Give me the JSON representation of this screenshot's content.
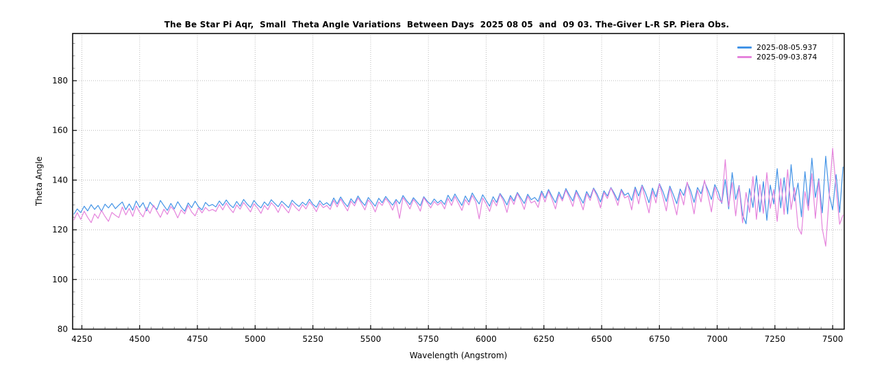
{
  "chart_data": {
    "type": "line",
    "title": "The Be Star Pi Aqr,  Small  Theta Angle Variations  Between Days  2025 08 05  and  09 03. The-Giver L-R SP. Piera Obs.",
    "xlabel": "Wavelength (Angstrom)",
    "ylabel": "Theta Angle",
    "xlim": [
      4210,
      7550
    ],
    "ylim": [
      80,
      199
    ],
    "x_major_ticks": [
      4250,
      4500,
      4750,
      5000,
      5250,
      5500,
      5750,
      6000,
      6250,
      6500,
      6750,
      7000,
      7250,
      7500
    ],
    "x_minor_step": 50,
    "y_major_ticks": [
      80,
      100,
      120,
      140,
      160,
      180
    ],
    "y_minor_step": 5,
    "grid": "dotted lines at major ticks",
    "grid_color": "#b8b8b8",
    "axis_color": "#000000",
    "legend_position": "top-right",
    "x_start": 4215,
    "x_step": 15,
    "series": [
      {
        "name": "2025-08-05.937",
        "color": "#4293e6",
        "values": [
          126.2,
          128.4,
          126.9,
          129.5,
          127.6,
          130.1,
          128.2,
          129.8,
          127.4,
          130.3,
          128.8,
          130.6,
          128.5,
          129.9,
          131.2,
          128.1,
          130.4,
          127.9,
          131.6,
          129.0,
          130.9,
          127.6,
          131.1,
          129.4,
          128.2,
          131.8,
          129.7,
          127.8,
          130.6,
          128.4,
          131.3,
          129.1,
          127.5,
          130.8,
          128.9,
          131.5,
          129.3,
          128.0,
          131.0,
          129.6,
          130.2,
          129.2,
          131.6,
          129.8,
          132.0,
          130.1,
          128.9,
          131.4,
          129.5,
          132.2,
          130.4,
          129.0,
          131.8,
          130.0,
          128.8,
          131.2,
          129.7,
          132.1,
          130.6,
          129.3,
          131.5,
          130.2,
          128.9,
          131.9,
          130.5,
          129.4,
          131.1,
          129.9,
          132.3,
          130.3,
          129.1,
          131.7,
          130.0,
          130.9,
          129.6,
          132.8,
          130.4,
          133.2,
          131.0,
          129.3,
          132.5,
          130.7,
          133.6,
          131.4,
          129.8,
          133.0,
          131.2,
          129.5,
          132.7,
          130.9,
          133.4,
          131.6,
          129.9,
          132.2,
          130.5,
          133.8,
          131.8,
          130.1,
          132.9,
          131.3,
          129.7,
          133.3,
          131.5,
          130.2,
          132.4,
          130.8,
          131.9,
          130.2,
          133.9,
          131.5,
          134.4,
          132.0,
          129.8,
          133.6,
          131.2,
          134.8,
          132.4,
          130.4,
          134.1,
          131.8,
          129.5,
          133.3,
          131.0,
          134.6,
          132.6,
          130.0,
          133.8,
          131.6,
          135.0,
          132.8,
          130.6,
          134.3,
          132.1,
          133.0,
          131.4,
          135.6,
          132.8,
          136.2,
          133.5,
          130.9,
          135.2,
          132.4,
          136.6,
          134.0,
          131.6,
          135.9,
          133.2,
          130.7,
          135.4,
          132.9,
          136.8,
          134.4,
          131.2,
          135.7,
          133.6,
          137.0,
          134.6,
          131.8,
          136.3,
          133.9,
          134.8,
          131.8,
          137.2,
          133.6,
          138.0,
          134.8,
          130.9,
          136.8,
          133.2,
          138.6,
          135.4,
          131.4,
          137.6,
          134.2,
          130.5,
          136.4,
          133.8,
          139.0,
          135.8,
          131.0,
          137.0,
          134.5,
          139.4,
          136.0,
          132.2,
          138.2,
          135.2,
          130.6,
          140.2,
          128.4,
          143.0,
          132.2,
          137.8,
          126.0,
          122.4,
          136.6,
          129.0,
          141.8,
          127.2,
          139.4,
          123.8,
          138.0,
          130.4,
          144.6,
          128.8,
          141.0,
          126.4,
          146.2,
          131.6,
          138.8,
          125.2,
          143.4,
          129.6,
          148.8,
          133.0,
          140.6,
          126.8,
          149.6,
          134.2,
          128.0,
          142.2,
          127.0,
          145.4
        ]
      },
      {
        "name": "2025-09-03.874",
        "color": "#e583dc",
        "values": [
          123.8,
          126.9,
          124.2,
          127.5,
          125.0,
          122.9,
          126.4,
          124.6,
          127.8,
          125.4,
          123.4,
          127.0,
          125.8,
          124.9,
          129.2,
          126.0,
          128.6,
          125.4,
          129.6,
          127.0,
          125.2,
          128.9,
          126.6,
          129.9,
          127.4,
          125.0,
          128.3,
          126.2,
          129.4,
          127.8,
          124.8,
          128.0,
          126.4,
          129.8,
          127.2,
          125.6,
          128.8,
          126.8,
          129.0,
          127.6,
          128.2,
          127.4,
          130.2,
          128.0,
          130.8,
          128.6,
          126.9,
          130.0,
          128.3,
          131.0,
          129.2,
          127.2,
          130.5,
          128.8,
          126.6,
          129.8,
          128.1,
          130.9,
          129.4,
          127.0,
          130.3,
          128.5,
          126.8,
          130.7,
          129.0,
          127.6,
          130.1,
          128.4,
          131.2,
          129.6,
          127.3,
          130.6,
          128.9,
          129.8,
          128.2,
          131.8,
          129.2,
          132.4,
          130.0,
          127.6,
          131.5,
          129.6,
          132.8,
          130.6,
          128.0,
          132.0,
          130.2,
          127.2,
          131.2,
          129.8,
          132.6,
          130.8,
          127.9,
          131.6,
          124.6,
          133.0,
          131.0,
          128.4,
          132.2,
          130.4,
          127.5,
          132.9,
          130.9,
          128.8,
          131.4,
          129.9,
          131.1,
          128.4,
          132.6,
          129.8,
          133.4,
          130.6,
          127.8,
          132.2,
          130.0,
          133.8,
          131.2,
          124.4,
          132.8,
          130.4,
          127.4,
          132.0,
          129.6,
          134.2,
          131.6,
          127.0,
          133.0,
          130.2,
          134.6,
          131.8,
          128.2,
          133.6,
          130.8,
          131.6,
          129.0,
          134.8,
          131.2,
          135.6,
          132.4,
          128.4,
          134.2,
          131.6,
          136.0,
          133.0,
          129.4,
          135.2,
          132.0,
          128.0,
          134.6,
          131.8,
          136.4,
          133.4,
          128.8,
          135.0,
          132.6,
          136.8,
          133.8,
          129.8,
          135.8,
          132.8,
          133.6,
          128.0,
          136.4,
          130.4,
          137.6,
          132.0,
          126.8,
          135.6,
          130.8,
          138.4,
          133.2,
          127.6,
          136.8,
          131.6,
          126.0,
          135.2,
          130.0,
          139.2,
          133.6,
          126.4,
          136.0,
          131.2,
          140.0,
          134.0,
          127.2,
          137.2,
          132.4,
          131.0,
          148.2,
          129.4,
          139.0,
          125.6,
          137.4,
          122.8,
          135.0,
          127.0,
          141.4,
          124.2,
          138.2,
          126.6,
          143.0,
          128.6,
          136.2,
          123.4,
          140.6,
          126.2,
          144.2,
          128.2,
          137.0,
          121.0,
          118.2,
          135.4,
          127.8,
          142.6,
          124.6,
          139.8,
          120.4,
          113.4,
          133.8,
          152.8,
          136.6,
          122.2,
          126.0
        ]
      }
    ]
  }
}
